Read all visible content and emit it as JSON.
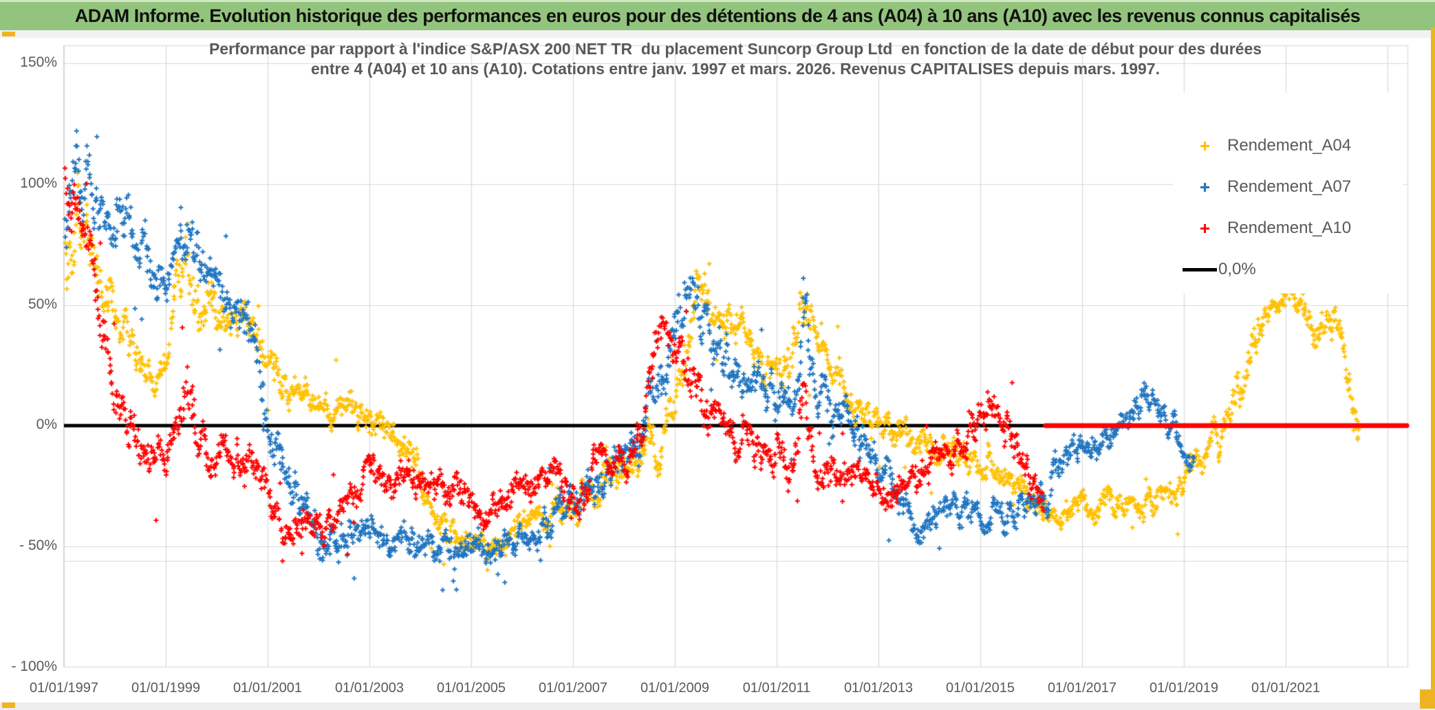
{
  "header": {
    "title": "ADAM Informe. Evolution historique des performances en euros pour des détentions de 4 ans (A04) à 10 ans (A10) avec les revenus connus capitalisés"
  },
  "chart": {
    "subtitle_line1": "Performance par rapport à l'indice S&P/ASX 200 NET TR  du placement Suncorp Group Ltd  en fonction de la date de début pour des durées",
    "subtitle_line2": "entre 4 (A04) et 10 ans (A10). Cotations entre janv. 1997 et mars. 2026. Revenus CAPITALISES depuis mars. 1997.",
    "legend": [
      {
        "label": "Rendement_A04",
        "marker": "plus",
        "color": "#FFC000"
      },
      {
        "label": "Rendement_A07",
        "marker": "plus",
        "color": "#2075C0"
      },
      {
        "label": "Rendement_A10",
        "marker": "plus",
        "color": "#FF0000"
      },
      {
        "label": "0,0%",
        "marker": "line",
        "color": "#000000"
      }
    ],
    "colors": {
      "a04": "#FFC000",
      "a07": "#2075C0",
      "a10": "#FF0000",
      "zero_line": "#000000",
      "grid": "#D9D9D9",
      "axis_text": "#595959",
      "header_bg": "#93C47D",
      "accent_gold": "#EFB322"
    }
  },
  "chart_data": {
    "type": "scatter",
    "title": "Performance par rapport à l'indice S&P/ASX 200 NET TR du placement Suncorp Group Ltd en fonction de la date de début pour des durées entre 4 (A04) et 10 ans (A10). Cotations entre janv. 1997 et mars. 2026. Revenus CAPITALISES depuis mars. 1997.",
    "x_axis": {
      "type": "date",
      "tick_labels": [
        "01/01/1997",
        "01/01/1999",
        "01/01/2001",
        "01/01/2003",
        "01/01/2005",
        "01/01/2007",
        "01/01/2009",
        "01/01/2011",
        "01/01/2013",
        "01/01/2015",
        "01/01/2017",
        "01/01/2019",
        "01/01/2021"
      ],
      "tick_years": [
        1997,
        1999,
        2001,
        2003,
        2005,
        2007,
        2009,
        2011,
        2013,
        2015,
        2017,
        2019,
        2021
      ],
      "gridline_only_years": [
        2023
      ],
      "range_years": [
        1997.0,
        2023.4
      ],
      "grid": true
    },
    "y_axis": {
      "tick_labels": [
        "150%",
        "100%",
        "50%",
        "0%",
        "- 50%",
        "- 100%"
      ],
      "tick_values": [
        150,
        100,
        50,
        0,
        -50,
        -100
      ],
      "extra_gridline_value": -56,
      "range": [
        -100,
        150
      ],
      "grid": true
    },
    "zero_line": {
      "label": "0,0%",
      "value": 0,
      "color": "#000000"
    },
    "legend_position": "right-top-inside",
    "path_format": "[start_year_decimal, mean_performance_pct, half_spread_pct]",
    "samples_per_year": 85,
    "series": [
      {
        "name": "Rendement_A04",
        "color": "#FFC000",
        "start": 1997.02,
        "end": 2022.45,
        "path": [
          [
            1997.0,
            82,
            26
          ],
          [
            1997.35,
            92,
            22
          ],
          [
            1997.7,
            58,
            14
          ],
          [
            1998.1,
            42,
            12
          ],
          [
            1998.55,
            28,
            10
          ],
          [
            1998.8,
            20,
            8
          ],
          [
            1999.1,
            42,
            10
          ],
          [
            1999.45,
            64,
            18
          ],
          [
            1999.6,
            52,
            12
          ],
          [
            2000.0,
            48,
            9
          ],
          [
            2000.6,
            44,
            8
          ],
          [
            2001.1,
            26,
            9
          ],
          [
            2001.5,
            12,
            8
          ],
          [
            2001.9,
            7,
            7
          ],
          [
            2002.3,
            6,
            7
          ],
          [
            2002.7,
            12,
            8
          ],
          [
            2003.1,
            0,
            8
          ],
          [
            2003.5,
            -6,
            7
          ],
          [
            2003.9,
            -18,
            8
          ],
          [
            2004.3,
            -33,
            7
          ],
          [
            2004.8,
            -45,
            7
          ],
          [
            2005.3,
            -54,
            6
          ],
          [
            2005.7,
            -46,
            6
          ],
          [
            2006.2,
            -42,
            6
          ],
          [
            2006.7,
            -34,
            7
          ],
          [
            2007.3,
            -29,
            8
          ],
          [
            2007.8,
            -20,
            8
          ],
          [
            2008.3,
            -13,
            8
          ],
          [
            2008.7,
            -8,
            10
          ],
          [
            2009.0,
            5,
            10
          ],
          [
            2009.4,
            58,
            13
          ],
          [
            2009.7,
            44,
            10
          ],
          [
            2010.0,
            47,
            8
          ],
          [
            2010.4,
            37,
            8
          ],
          [
            2010.8,
            27,
            8
          ],
          [
            2011.2,
            21,
            8
          ],
          [
            2011.55,
            52,
            13
          ],
          [
            2011.8,
            29,
            8
          ],
          [
            2012.1,
            21,
            8
          ],
          [
            2012.5,
            11,
            8
          ],
          [
            2012.9,
            1,
            8
          ],
          [
            2013.3,
            -5,
            7
          ],
          [
            2013.7,
            -6,
            7
          ],
          [
            2014.1,
            -8,
            7
          ],
          [
            2014.5,
            -12,
            7
          ],
          [
            2014.9,
            -15,
            7
          ],
          [
            2015.3,
            -18,
            7
          ],
          [
            2015.7,
            -25,
            7
          ],
          [
            2016.1,
            -31,
            7
          ],
          [
            2016.5,
            -38,
            6
          ],
          [
            2016.9,
            -33,
            6
          ],
          [
            2017.3,
            -35,
            6
          ],
          [
            2017.7,
            -32,
            6
          ],
          [
            2018.1,
            -30,
            6
          ],
          [
            2018.5,
            -33,
            6
          ],
          [
            2018.9,
            -28,
            7
          ],
          [
            2019.3,
            -15,
            7
          ],
          [
            2019.6,
            -7,
            7
          ],
          [
            2019.9,
            3,
            8
          ],
          [
            2020.2,
            20,
            9
          ],
          [
            2020.5,
            42,
            8
          ],
          [
            2020.8,
            52,
            5
          ],
          [
            2021.1,
            53,
            5
          ],
          [
            2021.4,
            47,
            6
          ],
          [
            2021.6,
            38,
            8
          ],
          [
            2021.9,
            44,
            8
          ],
          [
            2022.1,
            38,
            8
          ],
          [
            2022.25,
            22,
            9
          ],
          [
            2022.45,
            -2,
            12
          ]
        ]
      },
      {
        "name": "Rendement_A07",
        "color": "#2075C0",
        "start": 1997.02,
        "end": 2019.2,
        "path": [
          [
            1997.0,
            88,
            20
          ],
          [
            1997.3,
            104,
            16
          ],
          [
            1997.7,
            85,
            12
          ],
          [
            1998.1,
            87,
            11
          ],
          [
            1998.45,
            74,
            11
          ],
          [
            1998.8,
            64,
            11
          ],
          [
            1999.1,
            61,
            11
          ],
          [
            1999.45,
            86,
            14
          ],
          [
            1999.8,
            64,
            10
          ],
          [
            2000.2,
            55,
            10
          ],
          [
            2000.6,
            47,
            11
          ],
          [
            2000.95,
            10,
            12
          ],
          [
            2001.3,
            -14,
            10
          ],
          [
            2001.7,
            -28,
            9
          ],
          [
            2002.1,
            -45,
            10
          ],
          [
            2002.5,
            -44,
            8
          ],
          [
            2002.9,
            -40,
            8
          ],
          [
            2003.3,
            -44,
            8
          ],
          [
            2003.7,
            -46,
            8
          ],
          [
            2004.1,
            -50,
            7
          ],
          [
            2004.5,
            -48,
            7
          ],
          [
            2004.9,
            -50,
            7
          ],
          [
            2005.3,
            -52,
            7
          ],
          [
            2005.7,
            -50,
            7
          ],
          [
            2006.1,
            -44,
            7
          ],
          [
            2006.5,
            -40,
            7
          ],
          [
            2006.9,
            -32,
            7
          ],
          [
            2007.3,
            -25,
            7
          ],
          [
            2007.7,
            -20,
            7
          ],
          [
            2008.1,
            -12,
            8
          ],
          [
            2008.45,
            4,
            10
          ],
          [
            2008.75,
            18,
            11
          ],
          [
            2009.0,
            30,
            12
          ],
          [
            2009.3,
            54,
            13
          ],
          [
            2009.6,
            36,
            10
          ],
          [
            2009.9,
            29,
            10
          ],
          [
            2010.3,
            21,
            10
          ],
          [
            2010.7,
            15,
            9
          ],
          [
            2011.0,
            12,
            9
          ],
          [
            2011.3,
            8,
            9
          ],
          [
            2011.55,
            46,
            13
          ],
          [
            2011.8,
            12,
            9
          ],
          [
            2012.1,
            5,
            9
          ],
          [
            2012.5,
            0,
            9
          ],
          [
            2012.9,
            -14,
            9
          ],
          [
            2013.3,
            -28,
            8
          ],
          [
            2013.7,
            -42,
            7
          ],
          [
            2014.0,
            -40,
            7
          ],
          [
            2014.4,
            -38,
            7
          ],
          [
            2014.8,
            -35,
            7
          ],
          [
            2015.2,
            -38,
            7
          ],
          [
            2015.6,
            -35,
            7
          ],
          [
            2016.0,
            -36,
            7
          ],
          [
            2016.4,
            -25,
            8
          ],
          [
            2016.8,
            -10,
            7
          ],
          [
            2017.2,
            -8,
            6
          ],
          [
            2017.6,
            -5,
            6
          ],
          [
            2018.0,
            5,
            7
          ],
          [
            2018.25,
            12,
            7
          ],
          [
            2018.55,
            5,
            7
          ],
          [
            2018.8,
            2,
            6
          ],
          [
            2019.0,
            -8,
            6
          ],
          [
            2019.2,
            -15,
            6
          ]
        ]
      },
      {
        "name": "Rendement_A10",
        "color": "#FF0000",
        "start": 1997.02,
        "end": 2016.25,
        "flat_zero_segment": {
          "from": 2016.28,
          "to": 2023.38,
          "value": 0
        },
        "path": [
          [
            1997.0,
            100,
            12
          ],
          [
            1997.3,
            88,
            10
          ],
          [
            1997.6,
            62,
            10
          ],
          [
            1997.85,
            38,
            11
          ],
          [
            1998.1,
            5,
            11
          ],
          [
            1998.4,
            -10,
            9
          ],
          [
            1998.7,
            -15,
            9
          ],
          [
            1999.05,
            -8,
            8
          ],
          [
            1999.3,
            4,
            11
          ],
          [
            1999.45,
            28,
            20
          ],
          [
            1999.6,
            0,
            10
          ],
          [
            1999.9,
            -10,
            8
          ],
          [
            2000.3,
            -10,
            8
          ],
          [
            2000.7,
            -15,
            8
          ],
          [
            2001.0,
            -28,
            7
          ],
          [
            2001.4,
            -42,
            7
          ],
          [
            2001.8,
            -38,
            7
          ],
          [
            2002.2,
            -40,
            7
          ],
          [
            2002.6,
            -30,
            8
          ],
          [
            2003.0,
            -18,
            7
          ],
          [
            2003.4,
            -20,
            7
          ],
          [
            2003.8,
            -23,
            7
          ],
          [
            2004.2,
            -24,
            7
          ],
          [
            2004.6,
            -25,
            7
          ],
          [
            2005.0,
            -33,
            7
          ],
          [
            2005.15,
            -40,
            6
          ],
          [
            2005.5,
            -33,
            7
          ],
          [
            2005.9,
            -30,
            7
          ],
          [
            2006.3,
            -22,
            7
          ],
          [
            2006.7,
            -17,
            7
          ],
          [
            2007.05,
            -36,
            8
          ],
          [
            2007.35,
            -20,
            8
          ],
          [
            2007.6,
            -8,
            7
          ],
          [
            2007.9,
            -15,
            7
          ],
          [
            2008.2,
            -10,
            8
          ],
          [
            2008.5,
            15,
            12
          ],
          [
            2008.7,
            42,
            9
          ],
          [
            2009.0,
            30,
            10
          ],
          [
            2009.35,
            18,
            10
          ],
          [
            2009.7,
            5,
            8
          ],
          [
            2010.1,
            -2,
            8
          ],
          [
            2010.5,
            -8,
            8
          ],
          [
            2010.9,
            -14,
            8
          ],
          [
            2011.3,
            -15,
            8
          ],
          [
            2011.55,
            6,
            13
          ],
          [
            2011.8,
            -18,
            7
          ],
          [
            2012.2,
            -20,
            7
          ],
          [
            2012.6,
            -23,
            7
          ],
          [
            2013.0,
            -24,
            7
          ],
          [
            2013.35,
            -28,
            7
          ],
          [
            2013.7,
            -20,
            7
          ],
          [
            2014.1,
            -17,
            7
          ],
          [
            2014.5,
            -13,
            7
          ],
          [
            2014.9,
            2,
            10
          ],
          [
            2015.1,
            12,
            9
          ],
          [
            2015.45,
            5,
            9
          ],
          [
            2015.75,
            -5,
            9
          ],
          [
            2016.0,
            -18,
            8
          ],
          [
            2016.25,
            -30,
            6
          ]
        ]
      }
    ]
  }
}
